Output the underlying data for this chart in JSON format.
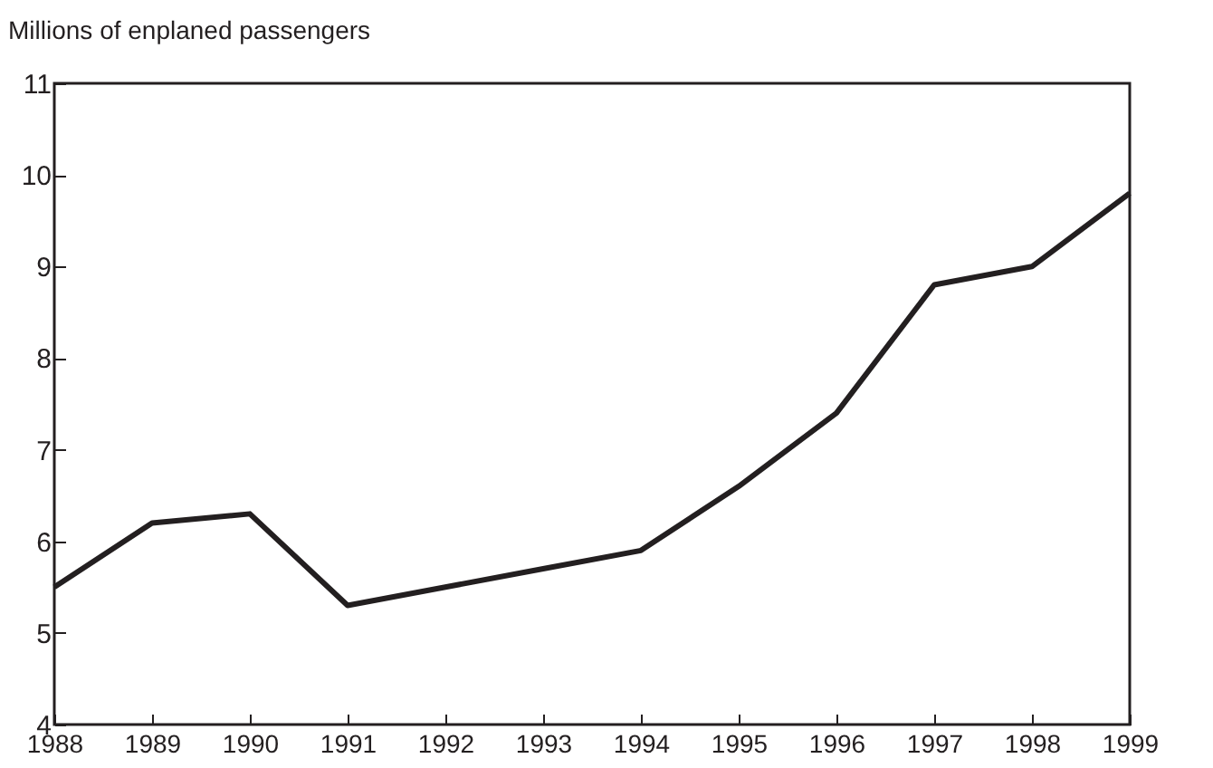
{
  "chart_data": {
    "type": "line",
    "ylabel": "Millions of enplaned passengers",
    "categories": [
      "1988",
      "1989",
      "1990",
      "1991",
      "1992",
      "1993",
      "1994",
      "1995",
      "1996",
      "1997",
      "1998",
      "1999"
    ],
    "series": [
      {
        "color": "#231f20",
        "values": [
          5.5,
          6.2,
          6.3,
          5.3,
          5.5,
          5.7,
          5.9,
          6.6,
          7.4,
          8.8,
          9.0,
          9.8
        ]
      }
    ],
    "ylim": [
      4,
      11
    ],
    "yticks": [
      4,
      5,
      6,
      7,
      8,
      9,
      10,
      11
    ],
    "grid": false,
    "legend": false,
    "marker": "none",
    "line_style": "solid"
  }
}
